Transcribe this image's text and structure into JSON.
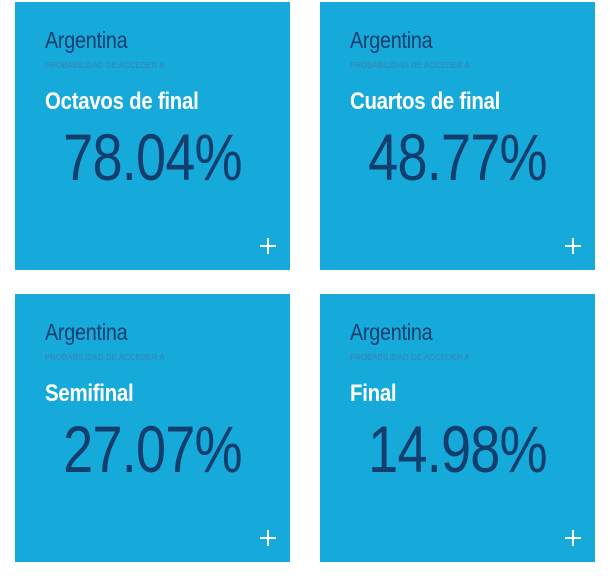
{
  "colors": {
    "card_background": "#16aadb",
    "country_text": "#123e6e",
    "subtitle_text": "#3e7fb0",
    "stage_text": "#ffffff",
    "value_text": "#123e6e"
  },
  "cards": [
    {
      "country": "Argentina",
      "subtitle": "PROBABILIDAD DE ACCEDER A",
      "stage": "Octavos de final",
      "probability": "78.04%",
      "expand_icon": "plus-icon"
    },
    {
      "country": "Argentina",
      "subtitle": "PROBABILIDAD DE ACCEDER A",
      "stage": "Cuartos de final",
      "probability": "48.77%",
      "expand_icon": "plus-icon"
    },
    {
      "country": "Argentina",
      "subtitle": "PROBABILIDAD DE ACCEDER A",
      "stage": "Semifinal",
      "probability": "27.07%",
      "expand_icon": "plus-icon"
    },
    {
      "country": "Argentina",
      "subtitle": "PROBABILIDAD DE ACCEDER A",
      "stage": "Final",
      "probability": "14.98%",
      "expand_icon": "plus-icon"
    }
  ]
}
